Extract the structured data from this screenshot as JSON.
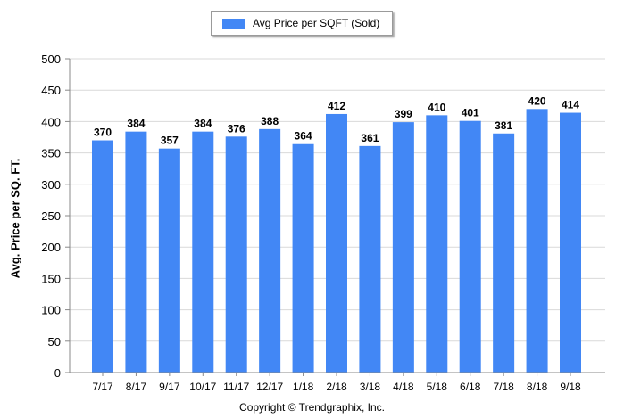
{
  "chart_data": {
    "type": "bar",
    "legend": {
      "label": "Avg Price per SQFT (Sold)",
      "position": "top-center"
    },
    "ylabel": "Avg. Price per SQ. FT.",
    "xlabel": "",
    "ylim": [
      0,
      500
    ],
    "yticks": [
      0,
      50,
      100,
      150,
      200,
      250,
      300,
      350,
      400,
      450,
      500
    ],
    "grid": true,
    "bar_color": "#4287f5",
    "categories": [
      "7/17",
      "8/17",
      "9/17",
      "10/17",
      "11/17",
      "12/17",
      "1/18",
      "2/18",
      "3/18",
      "4/18",
      "5/18",
      "6/18",
      "7/18",
      "8/18",
      "9/18"
    ],
    "series": [
      {
        "name": "Avg Price per SQFT (Sold)",
        "values": [
          370,
          384,
          357,
          384,
          376,
          388,
          364,
          412,
          361,
          399,
          410,
          401,
          381,
          420,
          414
        ]
      }
    ]
  },
  "footer": {
    "copyright": "Copyright © Trendgraphix, Inc."
  }
}
